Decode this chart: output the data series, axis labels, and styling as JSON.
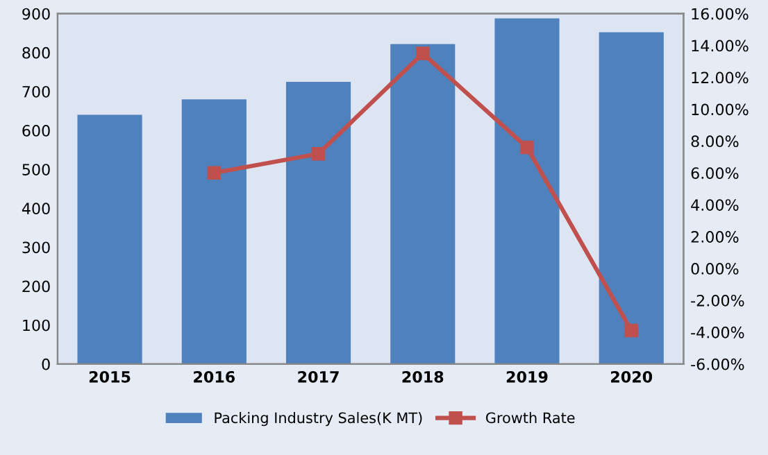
{
  "chart_data": {
    "type": "bar",
    "categories": [
      "2015",
      "2016",
      "2017",
      "2018",
      "2019",
      "2020"
    ],
    "series": [
      {
        "name": "Packing Industry Sales(K MT)",
        "color": "#4f81bd",
        "values": [
          640,
          680,
          725,
          822,
          888,
          852
        ]
      },
      {
        "name": "Growth Rate",
        "type": "line",
        "axis": "y2",
        "color": "#c0504d",
        "marker": "square",
        "values": [
          null,
          6.0,
          7.2,
          13.5,
          7.6,
          -3.9
        ]
      }
    ],
    "ylim": [
      0,
      900
    ],
    "yticks": [
      0,
      100,
      200,
      300,
      400,
      500,
      600,
      700,
      800,
      900
    ],
    "y2lim": [
      -6,
      16
    ],
    "y2ticks": [
      {
        "value": -6,
        "label": "-6.00%"
      },
      {
        "value": -4,
        "label": "-4.00%"
      },
      {
        "value": -2,
        "label": "-2.00%"
      },
      {
        "value": 0,
        "label": "0.00%"
      },
      {
        "value": 2,
        "label": "2.00%"
      },
      {
        "value": 4,
        "label": "4.00%"
      },
      {
        "value": 6,
        "label": "6.00%"
      },
      {
        "value": 8,
        "label": "8.00%"
      },
      {
        "value": 10,
        "label": "10.00%"
      },
      {
        "value": 12,
        "label": "12.00%"
      },
      {
        "value": 14,
        "label": "14.00%"
      },
      {
        "value": 16,
        "label": "16.00%"
      }
    ],
    "grid": false,
    "legend": "bottom"
  }
}
